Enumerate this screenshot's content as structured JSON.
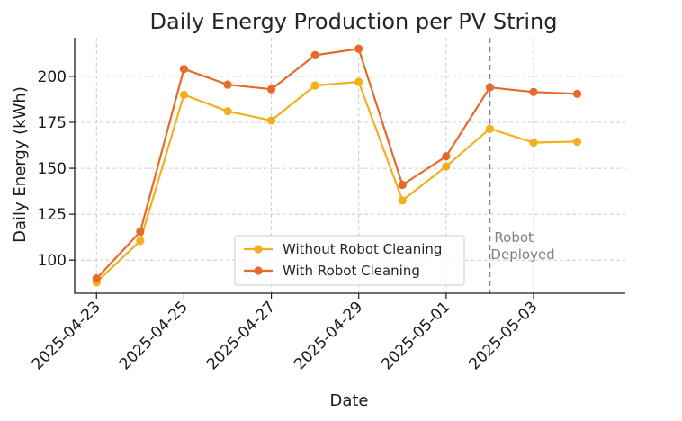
{
  "chart_data": {
    "type": "line",
    "title": "Daily Energy Production per PV String",
    "xlabel": "Date",
    "ylabel": "Daily Energy (kWh)",
    "x": [
      "2025-04-23",
      "2025-04-24",
      "2025-04-25",
      "2025-04-26",
      "2025-04-27",
      "2025-04-28",
      "2025-04-29",
      "2025-04-30",
      "2025-05-01",
      "2025-05-02",
      "2025-05-03",
      "2025-05-04"
    ],
    "xticks": [
      "2025-04-23",
      "2025-04-25",
      "2025-04-27",
      "2025-04-29",
      "2025-05-01",
      "2025-05-03"
    ],
    "yticks": [
      100,
      125,
      150,
      175,
      200
    ],
    "ylim": [
      82,
      221
    ],
    "grid": true,
    "legend_position": "bottom-center",
    "series": [
      {
        "name": "Without Robot Cleaning",
        "color": "#f2b01e",
        "values": [
          88,
          110.5,
          190,
          181,
          176,
          195,
          197,
          132.5,
          151,
          171.5,
          164,
          164.5
        ]
      },
      {
        "name": "With Robot Cleaning",
        "color": "#e8692a",
        "values": [
          90,
          115.5,
          204,
          195.5,
          193,
          211.5,
          215,
          141,
          156.5,
          194,
          191.5,
          190.5
        ]
      }
    ],
    "annotation": {
      "date": "2025-05-02",
      "text_lines": [
        "Robot",
        "Deployed"
      ],
      "color": "#808080"
    }
  }
}
